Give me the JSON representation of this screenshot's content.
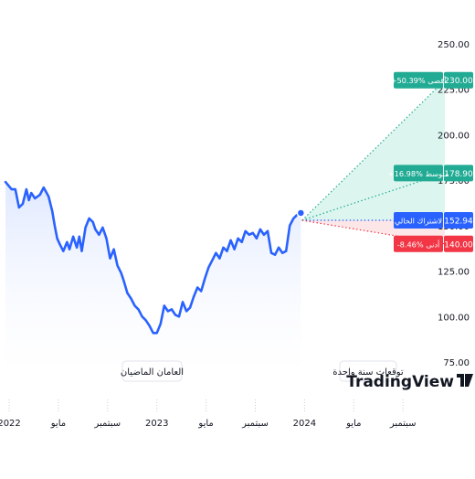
{
  "chart_data": {
    "type": "line",
    "title": "",
    "xlabel": "",
    "ylabel": "",
    "y_ticks": [
      "250.00",
      "225.00",
      "200.00",
      "175.00",
      "150.00",
      "125.00",
      "100.00",
      "75.00"
    ],
    "y_tick_values": [
      250,
      225,
      200,
      175,
      150,
      125,
      100,
      75
    ],
    "ylim": [
      67,
      256
    ],
    "x_ticks": [
      {
        "label": "2022",
        "t": 0
      },
      {
        "label": "مايو",
        "t": 4
      },
      {
        "label": "سبتمبر",
        "t": 8
      },
      {
        "label": "2023",
        "t": 12
      },
      {
        "label": "مايو",
        "t": 16
      },
      {
        "label": "سبتمبر",
        "t": 20
      },
      {
        "label": "2024",
        "t": 24
      },
      {
        "label": "مايو",
        "t": 28
      },
      {
        "label": "سبتمبر",
        "t": 32
      }
    ],
    "xlim": [
      -0.3,
      35.4
    ],
    "x_unit": "months from Jan 2022",
    "series": [
      {
        "x": [
          -0.3,
          0.2,
          0.5,
          0.8,
          1.1,
          1.4,
          1.6,
          1.8,
          2.1,
          2.5,
          2.8,
          3.2,
          3.5,
          3.7,
          3.9,
          4.1,
          4.4,
          4.7,
          4.9,
          5.2,
          5.5,
          5.7,
          5.9,
          6.2,
          6.5,
          6.8,
          7.0,
          7.3,
          7.6,
          7.9,
          8.2,
          8.5,
          8.8,
          9.1,
          9.3,
          9.6,
          9.9,
          10.2,
          10.5,
          10.8,
          11.1,
          11.4,
          11.7,
          12.0,
          12.3,
          12.6,
          12.9,
          13.2,
          13.5,
          13.8,
          14.1,
          14.4,
          14.7,
          15.0,
          15.3,
          15.6,
          15.9,
          16.2,
          16.5,
          16.8,
          17.1,
          17.4,
          17.7,
          18.0,
          18.3,
          18.6,
          18.9,
          19.2,
          19.5,
          19.8,
          20.1,
          20.4,
          20.7,
          21.0,
          21.3,
          21.6,
          21.9,
          22.2,
          22.5,
          22.8,
          23.1,
          23.4,
          23.7
        ],
        "y": [
          174,
          170,
          170,
          160,
          162,
          170,
          164,
          168,
          165,
          167,
          171,
          166,
          158,
          150,
          143,
          140,
          136,
          141,
          137,
          144,
          138,
          144,
          136,
          149,
          154,
          152,
          148,
          145,
          149,
          143,
          132,
          137,
          128,
          124,
          120,
          113,
          110,
          106,
          104,
          100,
          98,
          95,
          91,
          91,
          96,
          106,
          103,
          104,
          101,
          100,
          108,
          103,
          105,
          111,
          116,
          114,
          121,
          127,
          131,
          135,
          132,
          138,
          136,
          142,
          137,
          143,
          141,
          147,
          145,
          146,
          143,
          148,
          145,
          147,
          135,
          134,
          138,
          135,
          136,
          150,
          154,
          156,
          157
        ]
      }
    ],
    "forecast": {
      "origin": {
        "t": 23.8,
        "value": 152.94
      },
      "end_t": 35.4,
      "high": 230,
      "average": 178.9,
      "low": 140
    },
    "labels": {
      "high": {
        "text": "+50.39% أقصى",
        "value": "230.00"
      },
      "average": {
        "text": "+16.98% متوسط",
        "value": "178.90"
      },
      "current": {
        "text": "لاشتراك الحالي",
        "value": "152.94"
      },
      "low": {
        "text": "-8.46% أدنى",
        "value": "140.00"
      }
    },
    "period_labels": {
      "past": "العامان الماضيان",
      "forecast": "توقعات سنة واحدة"
    },
    "watermark": "TradingView",
    "colors": {
      "line": "#2962ff",
      "high": "#22ab94",
      "average": "#22ab94",
      "current": "#2962ff",
      "low": "#f23645",
      "axis_text": "#131722",
      "area_top": "#dce6ff",
      "area_bottom": "#ffffff",
      "forecast_fill": "#d6f5ec",
      "low_fill": "#fde3e5"
    }
  }
}
